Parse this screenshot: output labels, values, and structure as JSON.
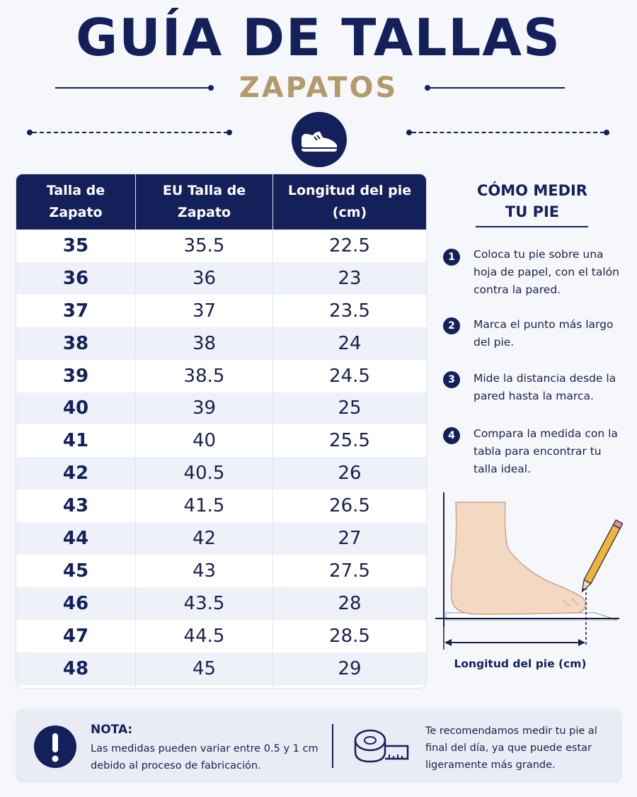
{
  "header": {
    "title": "GUÍA DE TALLAS",
    "subtitle": "ZAPATOS"
  },
  "table": {
    "headers": [
      "Talla de Zapato",
      "EU Talla de Zapato",
      "Longitud del pie (cm)"
    ],
    "header_lines": [
      [
        "Talla de",
        "Zapato"
      ],
      [
        "EU Talla de",
        "Zapato"
      ],
      [
        "Longitud del pie",
        "(cm)"
      ]
    ],
    "rows": [
      [
        "35",
        "35.5",
        "22.5"
      ],
      [
        "36",
        "36",
        "23"
      ],
      [
        "37",
        "37",
        "23.5"
      ],
      [
        "38",
        "38",
        "24"
      ],
      [
        "39",
        "38.5",
        "24.5"
      ],
      [
        "40",
        "39",
        "25"
      ],
      [
        "41",
        "40",
        "25.5"
      ],
      [
        "42",
        "40.5",
        "26"
      ],
      [
        "43",
        "41.5",
        "26.5"
      ],
      [
        "44",
        "42",
        "27"
      ],
      [
        "45",
        "43",
        "27.5"
      ],
      [
        "46",
        "43.5",
        "28"
      ],
      [
        "47",
        "44.5",
        "28.5"
      ],
      [
        "48",
        "45",
        "29"
      ]
    ]
  },
  "howto": {
    "title_line1": "CÓMO MEDIR",
    "title_line2": "TU PIE",
    "steps": [
      {
        "num": "1",
        "text": "Coloca tu pie sobre una hoja de papel, con el talón contra la pared."
      },
      {
        "num": "2",
        "text": "Marca el punto más largo del pie."
      },
      {
        "num": "3",
        "text": "Mide la distancia desde la pared hasta la marca."
      },
      {
        "num": "4",
        "text": "Compara la medida con la tabla para encontrar tu talla ideal."
      }
    ],
    "caption": "Longitud del pie (cm)"
  },
  "note": {
    "title": "NOTA:",
    "text": "Las medidas pueden variar entre 0.5 y 1 cm debido al proceso de fabricación.",
    "tip": "Te recomendamos medir tu pie al final del día, ya que puede estar ligeramente más grande."
  },
  "icons": [
    "shoe-icon",
    "exclamation-icon",
    "tape-measure-icon",
    "pencil-icon"
  ],
  "colors": {
    "navy": "#14205a",
    "gold": "#b39a6a",
    "row_alt": "#eef1f8"
  }
}
